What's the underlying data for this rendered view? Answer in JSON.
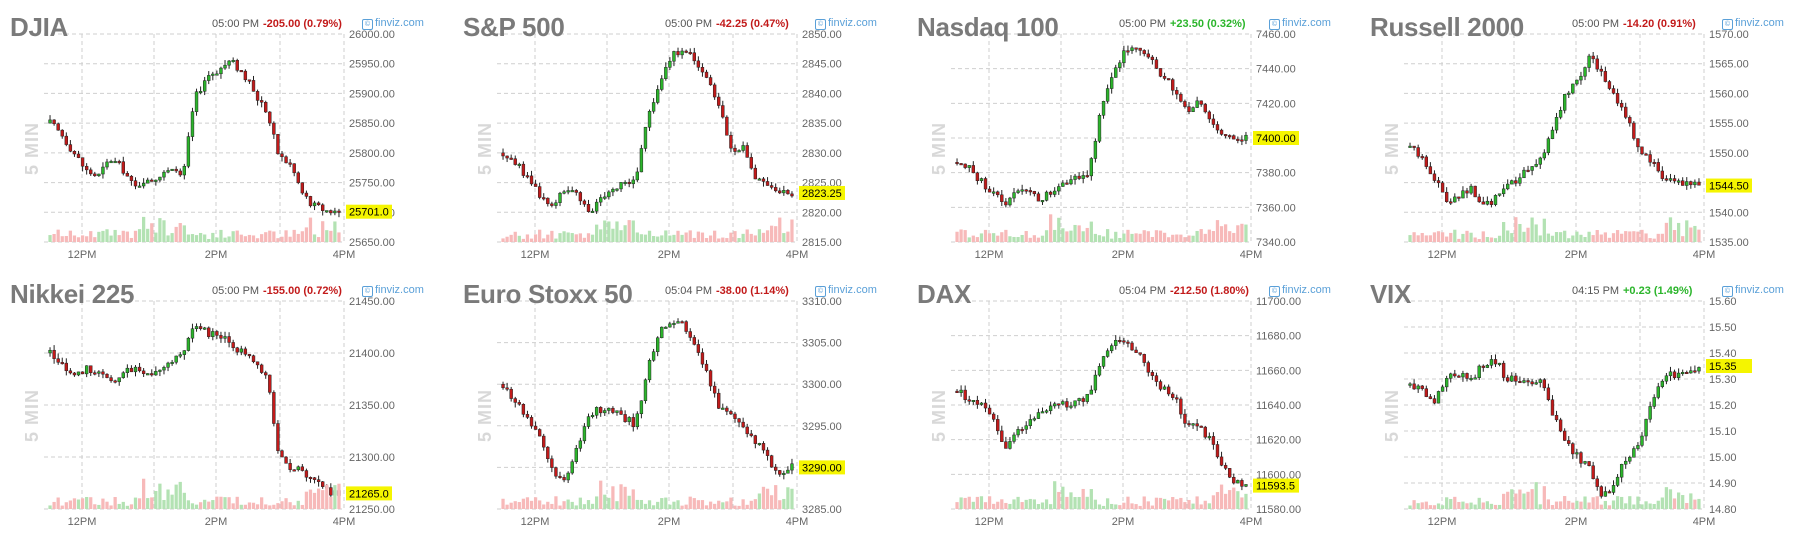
{
  "source_label": "finviz.com",
  "interval_label": "5 MIN",
  "colors": {
    "up": "#2bb52b",
    "down": "#c21a1a",
    "up_vol": "#b3e2b3",
    "down_vol": "#f7b9b9",
    "last_bg": "#f5f500",
    "title": "#7a7a7a",
    "grid": "#cfcfcf"
  },
  "chart_data": [
    {
      "type": "candlestick",
      "title": "DJIA",
      "time": "05:00 PM",
      "change": "-205.00 (0.79%)",
      "direction": "down",
      "last": "25701.0",
      "ylim": [
        25650,
        26000
      ],
      "yticks": [
        "25650.00",
        "25700.00",
        "25750.00",
        "25800.00",
        "25850.00",
        "25900.00",
        "25950.00",
        "26000.00"
      ],
      "xticks": [
        "12PM",
        "2PM",
        "4PM"
      ],
      "close_path": [
        25850,
        25830,
        25800,
        25770,
        25760,
        25790,
        25775,
        25740,
        25760,
        25760,
        25770,
        25755,
        25890,
        25930,
        25940,
        25955,
        25935,
        25900,
        25870,
        25795,
        25780,
        25730,
        25710,
        25703,
        25701
      ]
    },
    {
      "type": "candlestick",
      "title": "S&P 500",
      "time": "05:00 PM",
      "change": "-42.25 (0.47%)",
      "direction": "down",
      "last": "2823.25",
      "ylim": [
        2815,
        2850
      ],
      "yticks": [
        "2815.00",
        "2820.00",
        "2825.00",
        "2830.00",
        "2835.00",
        "2840.00",
        "2845.00",
        "2850.00"
      ],
      "xticks": [
        "12PM",
        "2PM",
        "4PM"
      ],
      "close_path": [
        2830,
        2828.5,
        2826,
        2823,
        2821,
        2824,
        2823,
        2820,
        2822,
        2824,
        2825,
        2825.5,
        2836,
        2842,
        2846,
        2848,
        2845,
        2842,
        2838,
        2830,
        2831,
        2826,
        2824.5,
        2823.5,
        2823.25
      ]
    },
    {
      "type": "candlestick",
      "title": "Nasdaq 100",
      "time": "05:00 PM",
      "change": "+23.50 (0.32%)",
      "direction": "up",
      "last": "7400.00",
      "ylim": [
        7340,
        7460
      ],
      "yticks": [
        "7340.00",
        "7360.00",
        "7380.00",
        "7400.00",
        "7420.00",
        "7440.00",
        "7460.00"
      ],
      "xticks": [
        "12PM",
        "2PM",
        "4PM"
      ],
      "close_path": [
        7386,
        7382,
        7375,
        7368,
        7362,
        7372,
        7368,
        7365,
        7370,
        7374,
        7378,
        7380,
        7420,
        7440,
        7450,
        7452,
        7445,
        7437,
        7428,
        7415,
        7420,
        7410,
        7404,
        7401,
        7400
      ]
    },
    {
      "type": "candlestick",
      "title": "Russell 2000",
      "time": "05:00 PM",
      "change": "-14.20 (0.91%)",
      "direction": "down",
      "last": "1544.50",
      "ylim": [
        1535,
        1570
      ],
      "yticks": [
        "1535.00",
        "1540.00",
        "1545.00",
        "1550.00",
        "1555.00",
        "1560.00",
        "1565.00",
        "1570.00"
      ],
      "xticks": [
        "12PM",
        "2PM",
        "4PM"
      ],
      "close_path": [
        1551,
        1549,
        1546,
        1542,
        1543,
        1544,
        1541,
        1542,
        1544,
        1546,
        1547,
        1549,
        1555,
        1560,
        1563,
        1566,
        1563,
        1560,
        1556,
        1551,
        1549,
        1546,
        1545,
        1544.5,
        1544.5
      ]
    },
    {
      "type": "candlestick",
      "title": "Nikkei 225",
      "time": "05:00 PM",
      "change": "-155.00 (0.72%)",
      "direction": "down",
      "last": "21265.0",
      "ylim": [
        21250,
        21450
      ],
      "yticks": [
        "21250.00",
        "21300.00",
        "21350.00",
        "21400.00",
        "21450.00"
      ],
      "xticks": [
        "12PM",
        "2PM",
        "4PM"
      ],
      "close_path": [
        21400,
        21390,
        21380,
        21385,
        21380,
        21370,
        21380,
        21385,
        21380,
        21385,
        21390,
        21400,
        21430,
        21420,
        21415,
        21410,
        21400,
        21390,
        21380,
        21300,
        21290,
        21285,
        21280,
        21268,
        21265
      ]
    },
    {
      "type": "candlestick",
      "title": "Euro Stoxx 50",
      "time": "05:04 PM",
      "change": "-38.00 (1.14%)",
      "direction": "down",
      "last": "3290.00",
      "ylim": [
        3285,
        3310
      ],
      "yticks": [
        "3285.00",
        "3290.00",
        "3295.00",
        "3300.00",
        "3305.00",
        "3310.00"
      ],
      "xticks": [
        "12PM",
        "2PM",
        "4PM"
      ],
      "close_path": [
        3300,
        3298,
        3296,
        3294,
        3290,
        3288,
        3292,
        3296,
        3297,
        3297,
        3296,
        3295,
        3302,
        3306,
        3308,
        3307,
        3304,
        3301,
        3297,
        3296,
        3295,
        3293,
        3291,
        3289,
        3290
      ]
    },
    {
      "type": "candlestick",
      "title": "DAX",
      "time": "05:04 PM",
      "change": "-212.50 (1.80%)",
      "direction": "down",
      "last": "11593.5",
      "ylim": [
        11580,
        11700
      ],
      "yticks": [
        "11580.00",
        "11600.00",
        "11620.00",
        "11640.00",
        "11660.00",
        "11680.00",
        "11700.00"
      ],
      "xticks": [
        "12PM",
        "2PM",
        "4PM"
      ],
      "close_path": [
        11648,
        11644,
        11640,
        11630,
        11615,
        11625,
        11632,
        11637,
        11640,
        11640,
        11642,
        11645,
        11668,
        11675,
        11677,
        11670,
        11660,
        11650,
        11645,
        11630,
        11628,
        11620,
        11605,
        11595,
        11593.5
      ]
    },
    {
      "type": "candlestick",
      "title": "VIX",
      "time": "04:15 PM",
      "change": "+0.23 (1.49%)",
      "direction": "up",
      "last": "15.35",
      "ylim": [
        14.8,
        15.6
      ],
      "yticks": [
        "14.80",
        "14.90",
        "15.00",
        "15.10",
        "15.20",
        "15.30",
        "15.40",
        "15.50",
        "15.60"
      ],
      "xticks": [
        "12PM",
        "2PM",
        "4PM"
      ],
      "close_path": [
        15.28,
        15.25,
        15.22,
        15.3,
        15.32,
        15.3,
        15.35,
        15.38,
        15.3,
        15.3,
        15.28,
        15.3,
        15.15,
        15.05,
        15.0,
        14.95,
        14.85,
        14.9,
        15.0,
        15.05,
        15.2,
        15.3,
        15.32,
        15.33,
        15.35
      ]
    }
  ]
}
